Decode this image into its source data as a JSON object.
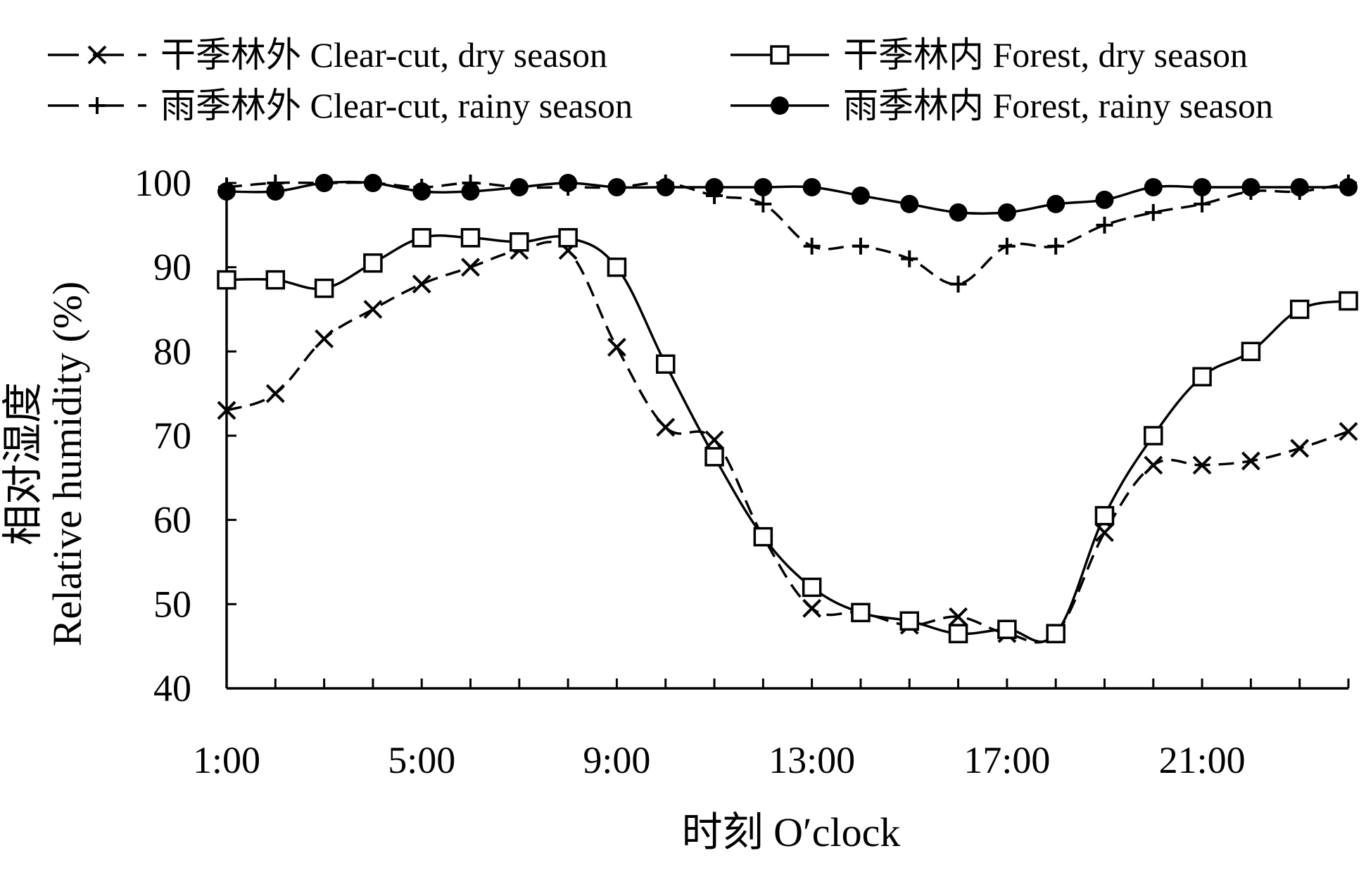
{
  "chart_data": {
    "type": "line",
    "xlabel": "时刻 O′clock",
    "ylabel_cn": "相对湿度",
    "ylabel_en": "Relative humidity (%)",
    "ylim": [
      40,
      100
    ],
    "yticks": [
      40,
      50,
      60,
      70,
      80,
      90,
      100
    ],
    "x_tick_labels": [
      "1:00",
      "5:00",
      "9:00",
      "13:00",
      "17:00",
      "21:00"
    ],
    "x_tick_hours": [
      1,
      5,
      9,
      13,
      17,
      21
    ],
    "xlim": [
      1,
      24
    ],
    "grid": false,
    "legend_position": "top",
    "x": [
      1,
      2,
      3,
      4,
      5,
      6,
      7,
      8,
      9,
      10,
      11,
      12,
      13,
      14,
      15,
      16,
      17,
      18,
      19,
      20,
      21,
      22,
      23,
      24
    ],
    "series": [
      {
        "name": "干季林外 Clear-cut, dry season",
        "marker": "x",
        "line": "dashed",
        "values": [
          73,
          75,
          81.5,
          85,
          88,
          90,
          92,
          92,
          80.5,
          71,
          69.5,
          58,
          49.5,
          49,
          47.5,
          48.5,
          46.5,
          46.5,
          58.5,
          66.5,
          66.5,
          67,
          68.5,
          70.5
        ]
      },
      {
        "name": "干季林内 Forest, dry season",
        "marker": "square",
        "line": "solid",
        "values": [
          88.5,
          88.5,
          87.5,
          90.5,
          93.5,
          93.5,
          93,
          93.5,
          90,
          78.5,
          67.5,
          58,
          52,
          49,
          48,
          46.5,
          47,
          46.5,
          60.5,
          70,
          77,
          80,
          85,
          86
        ]
      },
      {
        "name": "雨季林外 Clear-cut, rainy season",
        "marker": "plus",
        "line": "dashed",
        "values": [
          99.5,
          100,
          100,
          100,
          99.5,
          100,
          99.5,
          99.5,
          99.5,
          100,
          98.5,
          97.5,
          92.5,
          92.5,
          91,
          88,
          92.5,
          92.5,
          95,
          96.5,
          97.5,
          99,
          99,
          100
        ]
      },
      {
        "name": "雨季林内 Forest, rainy season",
        "marker": "dot",
        "line": "solid",
        "values": [
          99,
          99,
          100,
          100,
          99,
          99,
          99.5,
          100,
          99.5,
          99.5,
          99.5,
          99.5,
          99.5,
          98.5,
          97.5,
          96.5,
          96.5,
          97.5,
          98,
          99.5,
          99.5,
          99.5,
          99.5,
          99.5
        ]
      }
    ]
  }
}
